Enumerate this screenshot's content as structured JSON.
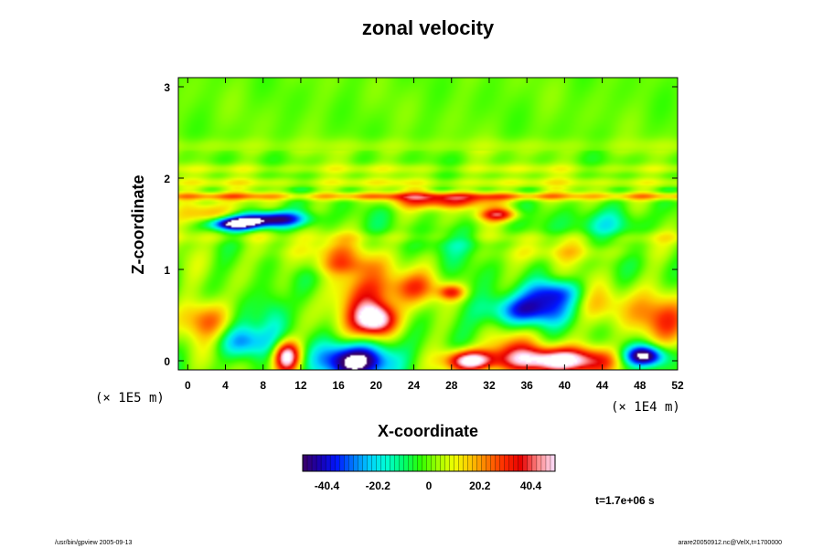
{
  "chart_data": {
    "type": "heatmap",
    "title": "zonal velocity",
    "xlabel": "X-coordinate",
    "ylabel": "Z-coordinate",
    "x_unit": "(× 1E4 m)",
    "y_unit": "(× 1E5 m)",
    "x_ticks": [
      "0",
      "4",
      "8",
      "12",
      "16",
      "20",
      "24",
      "28",
      "32",
      "36",
      "40",
      "44",
      "48",
      "52"
    ],
    "y_ticks": [
      "0",
      "1",
      "2",
      "3"
    ],
    "xlim": [
      -1,
      52
    ],
    "ylim": [
      -0.1,
      3.1
    ],
    "colorbar": {
      "min": -50,
      "max": 50,
      "ticks": [
        "-40.4",
        "-20.2",
        "0",
        "20.2",
        "40.4"
      ],
      "tick_values": [
        -40.4,
        -20.2,
        0,
        20.2,
        40.4
      ],
      "colormap": [
        "#3a0066",
        "#1a00b0",
        "#0016ff",
        "#0078ff",
        "#00d2ff",
        "#00ffd2",
        "#00ff6a",
        "#2cff00",
        "#9cff00",
        "#f0ff00",
        "#ffc400",
        "#ff7800",
        "#ff2a00",
        "#e60000",
        "#ff8a8a",
        "#ffe0ff"
      ]
    },
    "background_value": 0,
    "features": [
      {
        "x": 5,
        "z": 1.5,
        "sx": 2.0,
        "sz": 0.05,
        "v": -58
      },
      {
        "x": 9,
        "z": 1.55,
        "sx": 2.5,
        "sz": 0.06,
        "v": -52
      },
      {
        "x": 9,
        "z": 0.5,
        "sx": 1.2,
        "sz": 0.25,
        "v": -18
      },
      {
        "x": 2,
        "z": 0.45,
        "sx": 2.0,
        "sz": 0.15,
        "v": 25
      },
      {
        "x": 20,
        "z": 0.45,
        "sx": 1.5,
        "sz": 0.12,
        "v": 52
      },
      {
        "x": 19,
        "z": 0.7,
        "sx": 2.5,
        "sz": 0.25,
        "v": 30
      },
      {
        "x": 10.5,
        "z": 0.05,
        "sx": 1.0,
        "sz": 0.12,
        "v": 55
      },
      {
        "x": 18,
        "z": 0.0,
        "sx": 2.6,
        "sz": 0.14,
        "v": -60
      },
      {
        "x": 30,
        "z": 0.0,
        "sx": 1.8,
        "sz": 0.08,
        "v": 55
      },
      {
        "x": 39,
        "z": 0.0,
        "sx": 4.0,
        "sz": 0.1,
        "v": 60
      },
      {
        "x": 36,
        "z": 0.55,
        "sx": 3.0,
        "sz": 0.12,
        "v": -40
      },
      {
        "x": 39,
        "z": 0.75,
        "sx": 2.0,
        "sz": 0.1,
        "v": -30
      },
      {
        "x": 48.5,
        "z": 0.05,
        "sx": 1.5,
        "sz": 0.08,
        "v": -58
      },
      {
        "x": 50,
        "z": 0.45,
        "sx": 2.5,
        "sz": 0.2,
        "v": 25
      },
      {
        "x": 27.5,
        "z": 1.75,
        "sx": 4.0,
        "sz": 0.06,
        "v": 32
      },
      {
        "x": 33,
        "z": 1.6,
        "sx": 1.5,
        "sz": 0.05,
        "v": 35
      },
      {
        "x": 24,
        "z": 0.8,
        "sx": 2.0,
        "sz": 0.12,
        "v": 20
      },
      {
        "x": 28,
        "z": 0.75,
        "sx": 1.0,
        "sz": 0.06,
        "v": 28
      },
      {
        "x": 34,
        "z": 0.15,
        "sx": 2.0,
        "sz": 0.12,
        "v": 18
      },
      {
        "x": 44,
        "z": 0.6,
        "sx": 2.0,
        "sz": 0.15,
        "v": 15
      },
      {
        "x": 6,
        "z": 0.2,
        "sx": 2.0,
        "sz": 0.12,
        "v": -25
      },
      {
        "x": 2,
        "z": 1.6,
        "sx": 2.0,
        "sz": 0.1,
        "v": 25
      },
      {
        "x": 14,
        "z": 1.2,
        "sx": 4.0,
        "sz": 0.08,
        "v": 12
      },
      {
        "x": 40,
        "z": 1.2,
        "sx": 5.0,
        "sz": 0.08,
        "v": 12
      },
      {
        "x": 45,
        "z": 1.5,
        "sx": 3.0,
        "sz": 0.12,
        "v": -15
      },
      {
        "x": 30,
        "z": 1.3,
        "sx": 4.0,
        "sz": 0.1,
        "v": -10
      },
      {
        "x": 16,
        "z": 1.05,
        "sx": 3.0,
        "sz": 0.08,
        "v": 15
      }
    ],
    "bands": [
      {
        "z": 1.8,
        "sz": 0.03,
        "v": 22
      },
      {
        "z": 1.95,
        "sz": 0.04,
        "v": 10
      },
      {
        "z": 2.1,
        "sz": 0.04,
        "v": 8
      },
      {
        "z": 2.35,
        "sz": 0.06,
        "v": 5
      },
      {
        "z": 1.35,
        "sz": 0.05,
        "v": 7
      }
    ]
  },
  "time_label": "t=1.7e+06 s",
  "footer": {
    "left": "/usr/bin/gpview 2005-09-13",
    "right": "arare20050912.nc@VelX,t=1700000"
  }
}
